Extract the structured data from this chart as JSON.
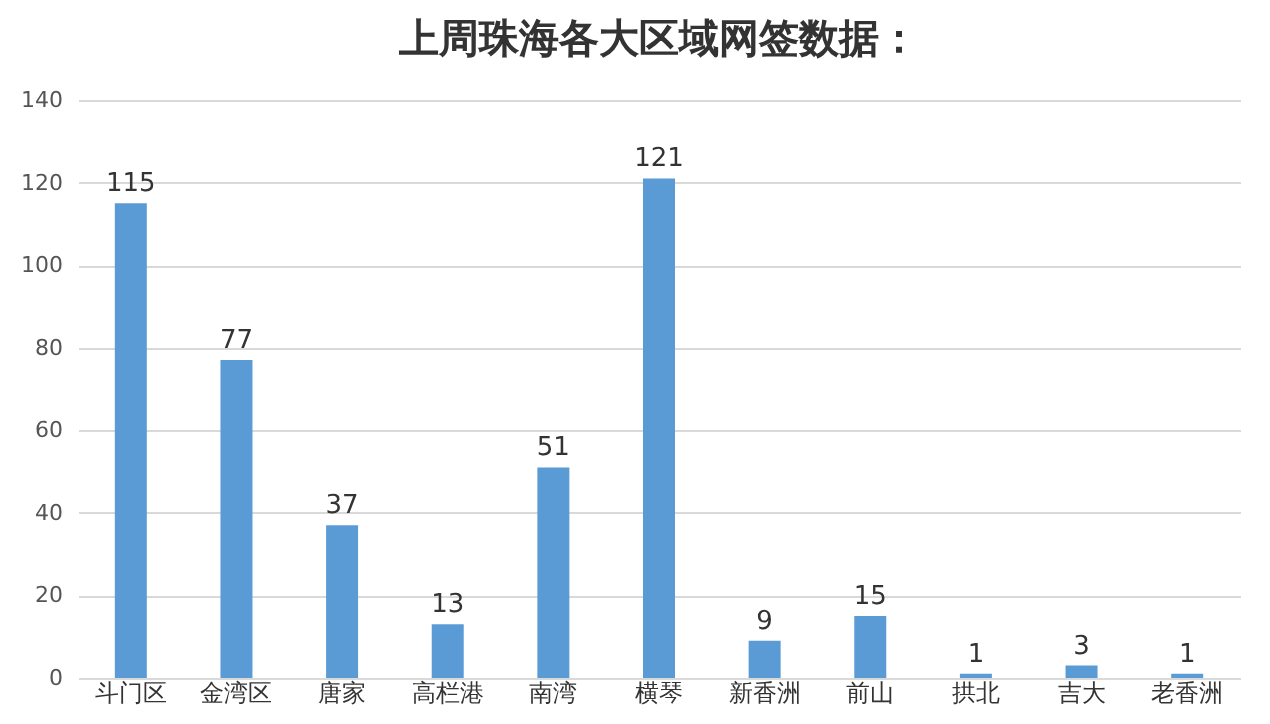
{
  "chart_data": {
    "type": "bar",
    "title": "上周珠海各大区域网签数据：",
    "categories": [
      "斗门区",
      "金湾区",
      "唐家",
      "高栏港",
      "南湾",
      "横琴",
      "新香洲",
      "前山",
      "拱北",
      "吉大",
      "老香洲"
    ],
    "values": [
      115,
      77,
      37,
      13,
      51,
      121,
      9,
      15,
      1,
      3,
      1
    ],
    "color": "#5b9bd5",
    "ylim": [
      0,
      140
    ],
    "yticks": [
      0,
      20,
      40,
      60,
      80,
      100,
      120,
      140
    ],
    "grid": "y",
    "data_labels": true
  }
}
